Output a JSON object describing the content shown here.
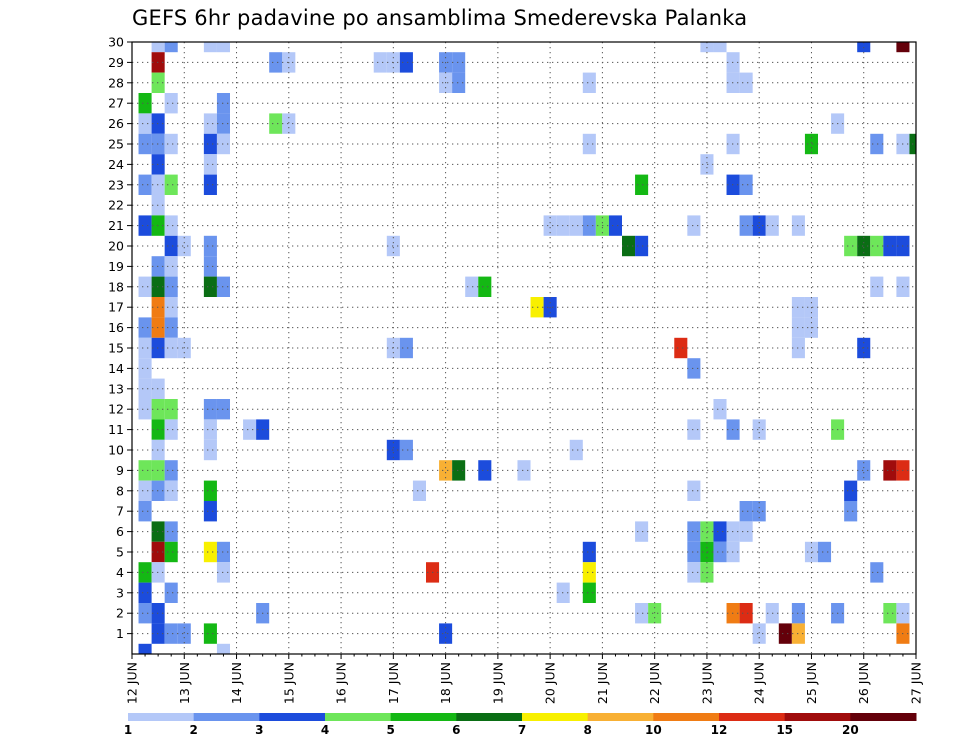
{
  "title": "GEFS 6hr padavine po ansamblima Smederevska Palanka",
  "chart_data": {
    "type": "heatmap",
    "title": "GEFS 6hr padavine po ansamblima Smederevska Palanka",
    "x_tick_labels": [
      "12 JUN",
      "13 JUN",
      "14 JUN",
      "15 JUN",
      "16 JUN",
      "17 JUN",
      "18 JUN",
      "19 JUN",
      "20 JUN",
      "21 JUN",
      "22 JUN",
      "23 JUN",
      "24 JUN",
      "25 JUN",
      "26 JUN",
      "27 JUN"
    ],
    "y_tick_labels": [
      1,
      2,
      3,
      4,
      5,
      6,
      7,
      8,
      9,
      10,
      11,
      12,
      13,
      14,
      15,
      16,
      17,
      18,
      19,
      20,
      21,
      22,
      23,
      24,
      25,
      26,
      27,
      28,
      29,
      30
    ],
    "y_range": [
      0,
      30
    ],
    "x_range_days": [
      12,
      27
    ],
    "x_unit": "JUN",
    "grid": true,
    "legend_position": "bottom",
    "legend": {
      "boundaries": [
        1,
        2,
        3,
        4,
        5,
        6,
        7,
        8,
        10,
        12,
        15,
        20
      ],
      "colors": [
        "#b4c8f8",
        "#6a94ee",
        "#1c4cdc",
        "#6ee65a",
        "#14b814",
        "#0a6e14",
        "#f8f000",
        "#f8b034",
        "#f07c14",
        "#dc2c14",
        "#a00c0c",
        "#64000a"
      ]
    },
    "cells": [
      {
        "d": 12.5,
        "m": 30,
        "c": 0
      },
      {
        "d": 12.75,
        "m": 30,
        "c": 1
      },
      {
        "d": 13.5,
        "m": 30,
        "c": 0
      },
      {
        "d": 13.75,
        "m": 30,
        "c": 0
      },
      {
        "d": 23.0,
        "m": 30,
        "c": 0
      },
      {
        "d": 23.25,
        "m": 30,
        "c": 0
      },
      {
        "d": 26.0,
        "m": 30,
        "c": 2
      },
      {
        "d": 26.75,
        "m": 30,
        "c": 11
      },
      {
        "d": 12.5,
        "m": 29,
        "c": 10
      },
      {
        "d": 14.75,
        "m": 29,
        "c": 1
      },
      {
        "d": 15.0,
        "m": 29,
        "c": 0
      },
      {
        "d": 16.75,
        "m": 29,
        "c": 0
      },
      {
        "d": 17.0,
        "m": 29,
        "c": 0
      },
      {
        "d": 17.25,
        "m": 29,
        "c": 2
      },
      {
        "d": 18.0,
        "m": 29,
        "c": 1
      },
      {
        "d": 18.25,
        "m": 29,
        "c": 1
      },
      {
        "d": 23.5,
        "m": 29,
        "c": 0
      },
      {
        "d": 12.5,
        "m": 28,
        "c": 3
      },
      {
        "d": 18.0,
        "m": 28,
        "c": 0
      },
      {
        "d": 18.25,
        "m": 28,
        "c": 1
      },
      {
        "d": 20.75,
        "m": 28,
        "c": 0
      },
      {
        "d": 23.5,
        "m": 28,
        "c": 0
      },
      {
        "d": 23.75,
        "m": 28,
        "c": 0
      },
      {
        "d": 12.25,
        "m": 27,
        "c": 4
      },
      {
        "d": 12.75,
        "m": 27,
        "c": 0
      },
      {
        "d": 13.75,
        "m": 27,
        "c": 1
      },
      {
        "d": 12.25,
        "m": 26,
        "c": 0
      },
      {
        "d": 12.5,
        "m": 26,
        "c": 2
      },
      {
        "d": 13.5,
        "m": 26,
        "c": 0
      },
      {
        "d": 13.75,
        "m": 26,
        "c": 1
      },
      {
        "d": 14.75,
        "m": 26,
        "c": 3
      },
      {
        "d": 15.0,
        "m": 26,
        "c": 0
      },
      {
        "d": 25.5,
        "m": 26,
        "c": 0
      },
      {
        "d": 12.25,
        "m": 25,
        "c": 1
      },
      {
        "d": 12.5,
        "m": 25,
        "c": 1
      },
      {
        "d": 12.75,
        "m": 25,
        "c": 0
      },
      {
        "d": 13.5,
        "m": 25,
        "c": 2
      },
      {
        "d": 13.75,
        "m": 25,
        "c": 0
      },
      {
        "d": 20.75,
        "m": 25,
        "c": 0
      },
      {
        "d": 23.5,
        "m": 25,
        "c": 0
      },
      {
        "d": 25.0,
        "m": 25,
        "c": 4
      },
      {
        "d": 26.25,
        "m": 25,
        "c": 1
      },
      {
        "d": 26.75,
        "m": 25,
        "c": 0
      },
      {
        "d": 27.0,
        "m": 25,
        "c": 5
      },
      {
        "d": 12.5,
        "m": 24,
        "c": 2
      },
      {
        "d": 13.5,
        "m": 24,
        "c": 0
      },
      {
        "d": 23.0,
        "m": 24,
        "c": 0
      },
      {
        "d": 12.25,
        "m": 23,
        "c": 1
      },
      {
        "d": 12.5,
        "m": 23,
        "c": 0
      },
      {
        "d": 12.75,
        "m": 23,
        "c": 3
      },
      {
        "d": 13.5,
        "m": 23,
        "c": 2
      },
      {
        "d": 21.75,
        "m": 23,
        "c": 4
      },
      {
        "d": 23.5,
        "m": 23,
        "c": 2
      },
      {
        "d": 23.75,
        "m": 23,
        "c": 1
      },
      {
        "d": 12.5,
        "m": 22,
        "c": 0
      },
      {
        "d": 12.25,
        "m": 21,
        "c": 2
      },
      {
        "d": 12.5,
        "m": 21,
        "c": 4
      },
      {
        "d": 12.75,
        "m": 21,
        "c": 0
      },
      {
        "d": 20.0,
        "m": 21,
        "c": 0
      },
      {
        "d": 20.25,
        "m": 21,
        "c": 0
      },
      {
        "d": 20.5,
        "m": 21,
        "c": 0
      },
      {
        "d": 20.75,
        "m": 21,
        "c": 1
      },
      {
        "d": 21.0,
        "m": 21,
        "c": 3
      },
      {
        "d": 21.25,
        "m": 21,
        "c": 2
      },
      {
        "d": 22.75,
        "m": 21,
        "c": 0
      },
      {
        "d": 23.75,
        "m": 21,
        "c": 1
      },
      {
        "d": 24.0,
        "m": 21,
        "c": 2
      },
      {
        "d": 24.25,
        "m": 21,
        "c": 0
      },
      {
        "d": 24.75,
        "m": 21,
        "c": 0
      },
      {
        "d": 12.75,
        "m": 20,
        "c": 2
      },
      {
        "d": 13.0,
        "m": 20,
        "c": 0
      },
      {
        "d": 13.5,
        "m": 20,
        "c": 1
      },
      {
        "d": 17.0,
        "m": 20,
        "c": 0
      },
      {
        "d": 21.5,
        "m": 20,
        "c": 5
      },
      {
        "d": 21.75,
        "m": 20,
        "c": 2
      },
      {
        "d": 25.75,
        "m": 20,
        "c": 3
      },
      {
        "d": 26.0,
        "m": 20,
        "c": 5
      },
      {
        "d": 26.25,
        "m": 20,
        "c": 3
      },
      {
        "d": 26.5,
        "m": 20,
        "c": 2
      },
      {
        "d": 26.75,
        "m": 20,
        "c": 2
      },
      {
        "d": 12.5,
        "m": 19,
        "c": 1
      },
      {
        "d": 12.75,
        "m": 19,
        "c": 0
      },
      {
        "d": 13.5,
        "m": 19,
        "c": 1
      },
      {
        "d": 12.25,
        "m": 18,
        "c": 0
      },
      {
        "d": 12.5,
        "m": 18,
        "c": 5
      },
      {
        "d": 12.75,
        "m": 18,
        "c": 1
      },
      {
        "d": 13.5,
        "m": 18,
        "c": 5
      },
      {
        "d": 13.75,
        "m": 18,
        "c": 1
      },
      {
        "d": 18.5,
        "m": 18,
        "c": 0
      },
      {
        "d": 18.75,
        "m": 18,
        "c": 4
      },
      {
        "d": 26.25,
        "m": 18,
        "c": 0
      },
      {
        "d": 26.75,
        "m": 18,
        "c": 0
      },
      {
        "d": 12.5,
        "m": 17,
        "c": 8
      },
      {
        "d": 12.75,
        "m": 17,
        "c": 0
      },
      {
        "d": 19.75,
        "m": 17,
        "c": 6
      },
      {
        "d": 20.0,
        "m": 17,
        "c": 2
      },
      {
        "d": 24.75,
        "m": 17,
        "c": 0
      },
      {
        "d": 25.0,
        "m": 17,
        "c": 0
      },
      {
        "d": 12.25,
        "m": 16,
        "c": 1
      },
      {
        "d": 12.5,
        "m": 16,
        "c": 8
      },
      {
        "d": 12.75,
        "m": 16,
        "c": 1
      },
      {
        "d": 24.75,
        "m": 16,
        "c": 0
      },
      {
        "d": 25.0,
        "m": 16,
        "c": 0
      },
      {
        "d": 12.25,
        "m": 15,
        "c": 0
      },
      {
        "d": 12.5,
        "m": 15,
        "c": 2
      },
      {
        "d": 12.75,
        "m": 15,
        "c": 0
      },
      {
        "d": 13.0,
        "m": 15,
        "c": 0
      },
      {
        "d": 17.0,
        "m": 15,
        "c": 0
      },
      {
        "d": 17.25,
        "m": 15,
        "c": 1
      },
      {
        "d": 22.5,
        "m": 15,
        "c": 9
      },
      {
        "d": 24.75,
        "m": 15,
        "c": 0
      },
      {
        "d": 26.0,
        "m": 15,
        "c": 2
      },
      {
        "d": 12.25,
        "m": 14,
        "c": 0
      },
      {
        "d": 22.75,
        "m": 14,
        "c": 1
      },
      {
        "d": 12.25,
        "m": 13,
        "c": 0
      },
      {
        "d": 12.5,
        "m": 13,
        "c": 0
      },
      {
        "d": 12.25,
        "m": 12,
        "c": 0
      },
      {
        "d": 12.5,
        "m": 12,
        "c": 3
      },
      {
        "d": 12.75,
        "m": 12,
        "c": 3
      },
      {
        "d": 13.5,
        "m": 12,
        "c": 1
      },
      {
        "d": 13.75,
        "m": 12,
        "c": 1
      },
      {
        "d": 23.25,
        "m": 12,
        "c": 0
      },
      {
        "d": 12.5,
        "m": 11,
        "c": 4
      },
      {
        "d": 12.75,
        "m": 11,
        "c": 0
      },
      {
        "d": 13.5,
        "m": 11,
        "c": 0
      },
      {
        "d": 14.25,
        "m": 11,
        "c": 0
      },
      {
        "d": 14.5,
        "m": 11,
        "c": 2
      },
      {
        "d": 22.75,
        "m": 11,
        "c": 0
      },
      {
        "d": 23.5,
        "m": 11,
        "c": 1
      },
      {
        "d": 24.0,
        "m": 11,
        "c": 0
      },
      {
        "d": 25.5,
        "m": 11,
        "c": 3
      },
      {
        "d": 12.5,
        "m": 10,
        "c": 0
      },
      {
        "d": 13.5,
        "m": 10,
        "c": 0
      },
      {
        "d": 17.0,
        "m": 10,
        "c": 2
      },
      {
        "d": 17.25,
        "m": 10,
        "c": 1
      },
      {
        "d": 20.5,
        "m": 10,
        "c": 0
      },
      {
        "d": 12.25,
        "m": 9,
        "c": 3
      },
      {
        "d": 12.5,
        "m": 9,
        "c": 3
      },
      {
        "d": 12.75,
        "m": 9,
        "c": 1
      },
      {
        "d": 18.0,
        "m": 9,
        "c": 7
      },
      {
        "d": 18.25,
        "m": 9,
        "c": 5
      },
      {
        "d": 18.75,
        "m": 9,
        "c": 2
      },
      {
        "d": 19.5,
        "m": 9,
        "c": 0
      },
      {
        "d": 26.0,
        "m": 9,
        "c": 1
      },
      {
        "d": 26.5,
        "m": 9,
        "c": 10
      },
      {
        "d": 26.75,
        "m": 9,
        "c": 9
      },
      {
        "d": 12.25,
        "m": 8,
        "c": 0
      },
      {
        "d": 12.5,
        "m": 8,
        "c": 1
      },
      {
        "d": 12.75,
        "m": 8,
        "c": 0
      },
      {
        "d": 13.5,
        "m": 8,
        "c": 4
      },
      {
        "d": 17.5,
        "m": 8,
        "c": 0
      },
      {
        "d": 22.75,
        "m": 8,
        "c": 0
      },
      {
        "d": 25.75,
        "m": 8,
        "c": 2
      },
      {
        "d": 12.25,
        "m": 7,
        "c": 1
      },
      {
        "d": 13.5,
        "m": 7,
        "c": 2
      },
      {
        "d": 23.75,
        "m": 7,
        "c": 1
      },
      {
        "d": 24.0,
        "m": 7,
        "c": 1
      },
      {
        "d": 25.75,
        "m": 7,
        "c": 1
      },
      {
        "d": 12.5,
        "m": 6,
        "c": 5
      },
      {
        "d": 12.75,
        "m": 6,
        "c": 1
      },
      {
        "d": 21.75,
        "m": 6,
        "c": 0
      },
      {
        "d": 22.75,
        "m": 6,
        "c": 1
      },
      {
        "d": 23.0,
        "m": 6,
        "c": 3
      },
      {
        "d": 23.25,
        "m": 6,
        "c": 2
      },
      {
        "d": 23.5,
        "m": 6,
        "c": 0
      },
      {
        "d": 23.75,
        "m": 6,
        "c": 0
      },
      {
        "d": 12.5,
        "m": 5,
        "c": 10
      },
      {
        "d": 12.75,
        "m": 5,
        "c": 4
      },
      {
        "d": 13.5,
        "m": 5,
        "c": 6
      },
      {
        "d": 13.75,
        "m": 5,
        "c": 1
      },
      {
        "d": 20.75,
        "m": 5,
        "c": 2
      },
      {
        "d": 22.75,
        "m": 5,
        "c": 1
      },
      {
        "d": 23.0,
        "m": 5,
        "c": 4
      },
      {
        "d": 23.25,
        "m": 5,
        "c": 1
      },
      {
        "d": 23.5,
        "m": 5,
        "c": 0
      },
      {
        "d": 25.0,
        "m": 5,
        "c": 0
      },
      {
        "d": 25.25,
        "m": 5,
        "c": 1
      },
      {
        "d": 12.25,
        "m": 4,
        "c": 4
      },
      {
        "d": 12.5,
        "m": 4,
        "c": 0
      },
      {
        "d": 13.75,
        "m": 4,
        "c": 0
      },
      {
        "d": 17.75,
        "m": 4,
        "c": 9
      },
      {
        "d": 20.75,
        "m": 4,
        "c": 6
      },
      {
        "d": 22.75,
        "m": 4,
        "c": 0
      },
      {
        "d": 23.0,
        "m": 4,
        "c": 3
      },
      {
        "d": 26.25,
        "m": 4,
        "c": 1
      },
      {
        "d": 12.25,
        "m": 3,
        "c": 2
      },
      {
        "d": 12.75,
        "m": 3,
        "c": 1
      },
      {
        "d": 20.25,
        "m": 3,
        "c": 0
      },
      {
        "d": 20.75,
        "m": 3,
        "c": 4
      },
      {
        "d": 12.25,
        "m": 2,
        "c": 1
      },
      {
        "d": 12.5,
        "m": 2,
        "c": 2
      },
      {
        "d": 14.5,
        "m": 2,
        "c": 1
      },
      {
        "d": 21.75,
        "m": 2,
        "c": 0
      },
      {
        "d": 22.0,
        "m": 2,
        "c": 3
      },
      {
        "d": 23.5,
        "m": 2,
        "c": 8
      },
      {
        "d": 23.75,
        "m": 2,
        "c": 9
      },
      {
        "d": 24.25,
        "m": 2,
        "c": 0
      },
      {
        "d": 24.75,
        "m": 2,
        "c": 1
      },
      {
        "d": 25.5,
        "m": 2,
        "c": 1
      },
      {
        "d": 26.5,
        "m": 2,
        "c": 3
      },
      {
        "d": 26.75,
        "m": 2,
        "c": 0
      },
      {
        "d": 12.5,
        "m": 1,
        "c": 2
      },
      {
        "d": 12.75,
        "m": 1,
        "c": 1
      },
      {
        "d": 13.0,
        "m": 1,
        "c": 1
      },
      {
        "d": 13.5,
        "m": 1,
        "c": 4
      },
      {
        "d": 18.0,
        "m": 1,
        "c": 2
      },
      {
        "d": 24.0,
        "m": 1,
        "c": 0
      },
      {
        "d": 24.5,
        "m": 1,
        "c": 11
      },
      {
        "d": 24.75,
        "m": 1,
        "c": 7
      },
      {
        "d": 26.75,
        "m": 1,
        "c": 8
      },
      {
        "d": 12.25,
        "m": 0,
        "c": 2
      },
      {
        "d": 13.75,
        "m": 0,
        "c": 0
      }
    ]
  }
}
